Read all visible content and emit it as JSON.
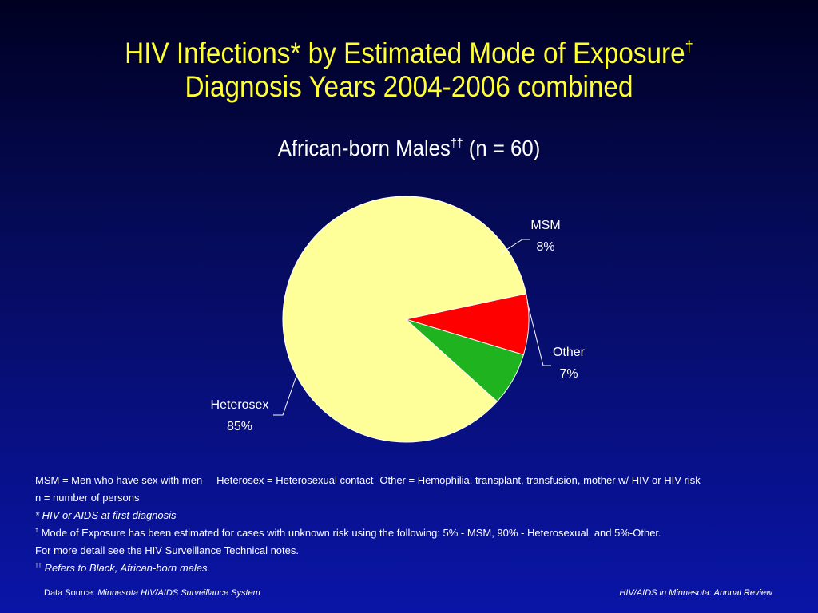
{
  "title": {
    "line1": "HIV Infections* by Estimated Mode of Exposure",
    "line1_mark": "†",
    "line2": "Diagnosis Years 2004-2006 combined"
  },
  "subtitle": {
    "text": "African-born Males",
    "mark": "††",
    "n": " (n = 60)"
  },
  "chart_data": {
    "type": "pie",
    "title": "African-born Males†† (n = 60)",
    "slices": [
      {
        "label": "Heterosex",
        "value": 85,
        "value_label": "85%",
        "color": "#ffff99"
      },
      {
        "label": "MSM",
        "value": 8,
        "value_label": "8%",
        "color": "#ff0000"
      },
      {
        "label": "Other",
        "value": 7,
        "value_label": "7%",
        "color": "#1fb31f"
      }
    ]
  },
  "notes": {
    "definitions": [
      "MSM = Men who have sex with men",
      "Heterosex = Heterosexual contact",
      "Other = Hemophilia, transplant, transfusion, mother w/ HIV or HIV risk"
    ],
    "n_def": "n = number of persons",
    "asterisk": "* HIV or AIDS at first diagnosis",
    "dagger_mark": "†",
    "dagger": " Mode of Exposure has been estimated for cases with unknown risk using the following: 5% - MSM, 90% - Heterosexual, and 5%-Other.",
    "more": "For more detail see the HIV Surveillance Technical notes.",
    "ddagger_mark": "††",
    "ddagger": " Refers to Black, African-born males."
  },
  "footer": {
    "source_label": "Data Source: ",
    "source": "Minnesota HIV/AIDS Surveillance System",
    "right": "HIV/AIDS in Minnesota: Annual Review"
  }
}
